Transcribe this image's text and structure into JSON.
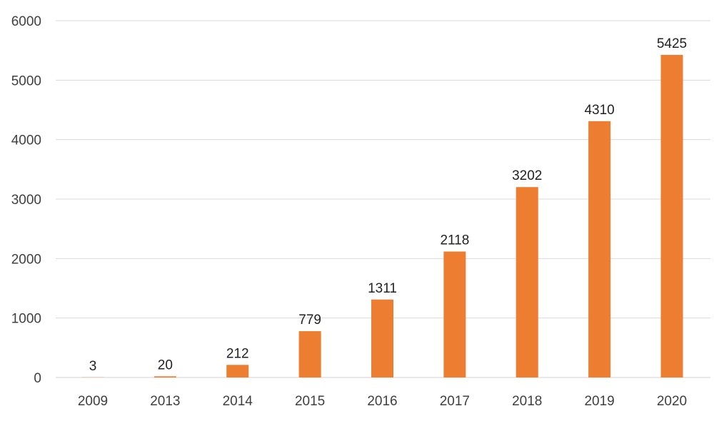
{
  "chart_data": {
    "type": "bar",
    "categories": [
      "2009",
      "2013",
      "2014",
      "2015",
      "2016",
      "2017",
      "2018",
      "2019",
      "2020"
    ],
    "values": [
      3,
      20,
      212,
      779,
      1311,
      2118,
      3202,
      4310,
      5425
    ],
    "data_labels": [
      "3",
      "20",
      "212",
      "779",
      "1311",
      "2118",
      "3202",
      "4310",
      "5425"
    ],
    "y_ticks": [
      "0",
      "1000",
      "2000",
      "3000",
      "4000",
      "5000",
      "6000"
    ],
    "ylim": [
      0,
      6000
    ],
    "title": "",
    "xlabel": "",
    "ylabel": "",
    "grid": "horizontal",
    "legend": "none",
    "bar_color": "#ED7D31",
    "grid_color": "#d9d9d9"
  }
}
